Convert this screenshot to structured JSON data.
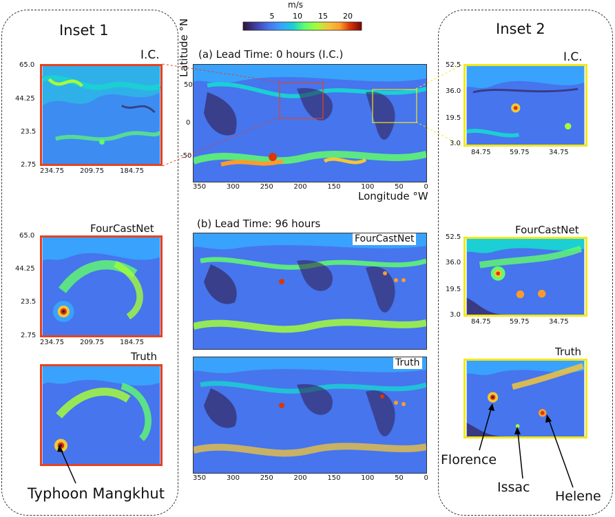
{
  "colorbar": {
    "unit": "m/s",
    "ticks": [
      "5",
      "10",
      "15",
      "20"
    ],
    "colors": [
      "#30123b",
      "#4145ab",
      "#4675ed",
      "#39a2fc",
      "#1bcfd4",
      "#24eca6",
      "#61fc6c",
      "#a4fc3b",
      "#d1e834",
      "#f3c63a",
      "#fe9b2d",
      "#f36315",
      "#d93806",
      "#b11901",
      "#7a0403"
    ]
  },
  "inset1": {
    "title": "Inset 1",
    "ic_label": "I.C.",
    "fcn_label": "FourCastNet",
    "truth_label": "Truth",
    "y_ticks": [
      "65.0",
      "44.25",
      "23.5",
      "2.75"
    ],
    "x_ticks": [
      "234.75",
      "209.75",
      "184.75"
    ],
    "annotation": "Typhoon Mangkhut"
  },
  "inset2": {
    "title": "Inset 2",
    "ic_label": "I.C.",
    "fcn_label": "FourCastNet",
    "truth_label": "Truth",
    "y_ticks": [
      "52.5",
      "36.0",
      "19.5",
      "3.0"
    ],
    "x_ticks": [
      "84.75",
      "59.75",
      "34.75"
    ],
    "annotations": [
      "Florence",
      "Issac",
      "Helene"
    ]
  },
  "panel_a": {
    "title": "(a) Lead Time: 0 hours (I.C.)",
    "ylabel": "Latitude °N",
    "xlabel": "Longitude °W",
    "y_ticks": [
      "50",
      "0",
      "-50"
    ],
    "x_ticks": [
      "350",
      "300",
      "250",
      "200",
      "150",
      "100",
      "50",
      "0"
    ]
  },
  "panel_b": {
    "title": "(b) Lead Time: 96 hours",
    "fcn_label": "FourCastNet",
    "truth_label": "Truth",
    "x_ticks": [
      "350",
      "300",
      "250",
      "200",
      "150",
      "100",
      "50",
      "0"
    ]
  },
  "colors": {
    "inset1_frame": "#e8411f",
    "inset2_frame": "#f2e81a"
  }
}
